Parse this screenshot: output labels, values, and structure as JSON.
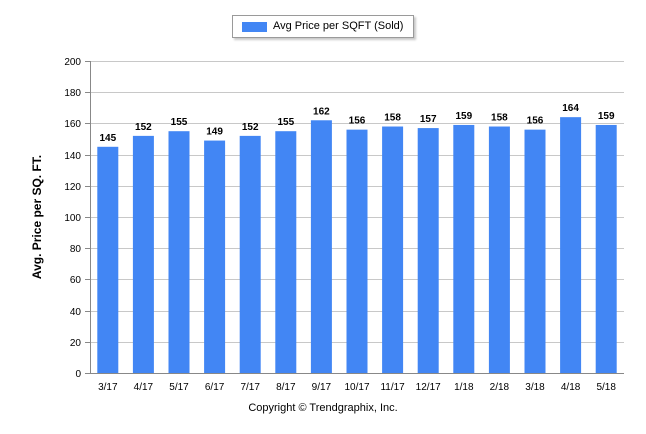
{
  "legend": {
    "label": "Avg Price per SQFT (Sold)"
  },
  "footer": {
    "copyright": "Copyright © Trendgraphix, Inc."
  },
  "chart_data": {
    "type": "bar",
    "categories": [
      "3/17",
      "4/17",
      "5/17",
      "6/17",
      "7/17",
      "8/17",
      "9/17",
      "10/17",
      "11/17",
      "12/17",
      "1/18",
      "2/18",
      "3/18",
      "4/18",
      "5/18"
    ],
    "series": [
      {
        "name": "Avg Price per SQFT (Sold)",
        "values": [
          145,
          152,
          155,
          149,
          152,
          155,
          162,
          156,
          158,
          157,
          159,
          158,
          156,
          164,
          159
        ],
        "color": "#4286f4"
      }
    ],
    "ylabel": "Avg. Price per SQ. FT.",
    "xlabel": "",
    "ylim": [
      0,
      200
    ],
    "yticks": [
      0,
      20,
      40,
      60,
      80,
      100,
      120,
      140,
      160,
      180,
      200
    ],
    "grid": true,
    "legend_position": "top-center",
    "data_labels": true
  }
}
